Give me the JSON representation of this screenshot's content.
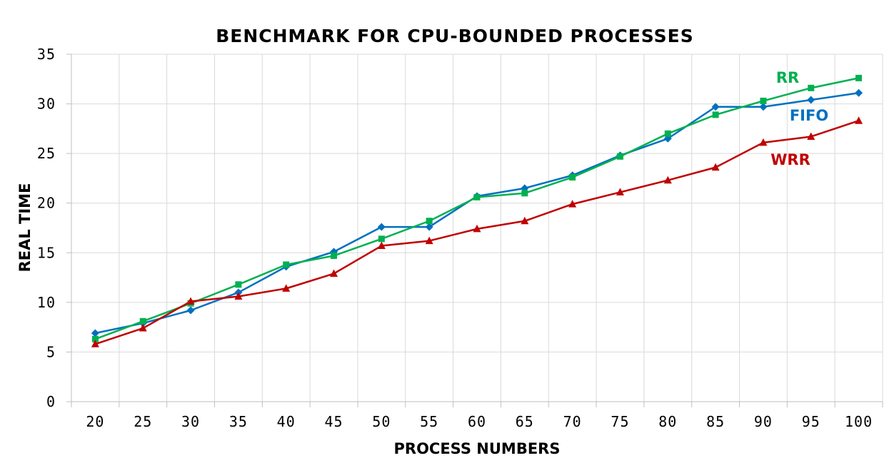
{
  "chart_data": {
    "type": "line",
    "title": "BENCHMARK FOR CPU-BOUNDED PROCESSES",
    "xlabel": "PROCESS NUMBERS",
    "ylabel": "REAL TIME",
    "categories": [
      "20",
      "25",
      "30",
      "35",
      "40",
      "45",
      "50",
      "55",
      "60",
      "65",
      "70",
      "75",
      "80",
      "85",
      "90",
      "95",
      "100"
    ],
    "ylim": [
      0,
      35
    ],
    "yticks": [
      "0",
      "5",
      "10",
      "15",
      "20",
      "25",
      "30",
      "35"
    ],
    "grid": true,
    "legend": "inline labels near line ends",
    "series": [
      {
        "name": "FIFO",
        "color": "#0070C0",
        "marker": "diamond",
        "values": [
          6.9,
          7.9,
          9.2,
          11.0,
          13.6,
          15.1,
          17.6,
          17.6,
          20.7,
          21.5,
          22.8,
          24.8,
          26.5,
          29.7,
          29.7,
          30.4,
          31.1
        ]
      },
      {
        "name": "RR",
        "color": "#00B050",
        "marker": "square",
        "values": [
          6.3,
          8.1,
          9.9,
          11.8,
          13.8,
          14.7,
          16.4,
          18.2,
          20.6,
          21.0,
          22.6,
          24.7,
          27.0,
          28.9,
          30.3,
          31.6,
          32.6
        ]
      },
      {
        "name": "WRR",
        "color": "#C00000",
        "marker": "triangle",
        "values": [
          5.8,
          7.4,
          10.1,
          10.6,
          11.4,
          12.9,
          15.7,
          16.2,
          17.4,
          18.2,
          19.9,
          21.1,
          22.3,
          23.6,
          26.1,
          26.7,
          28.3
        ]
      }
    ]
  }
}
